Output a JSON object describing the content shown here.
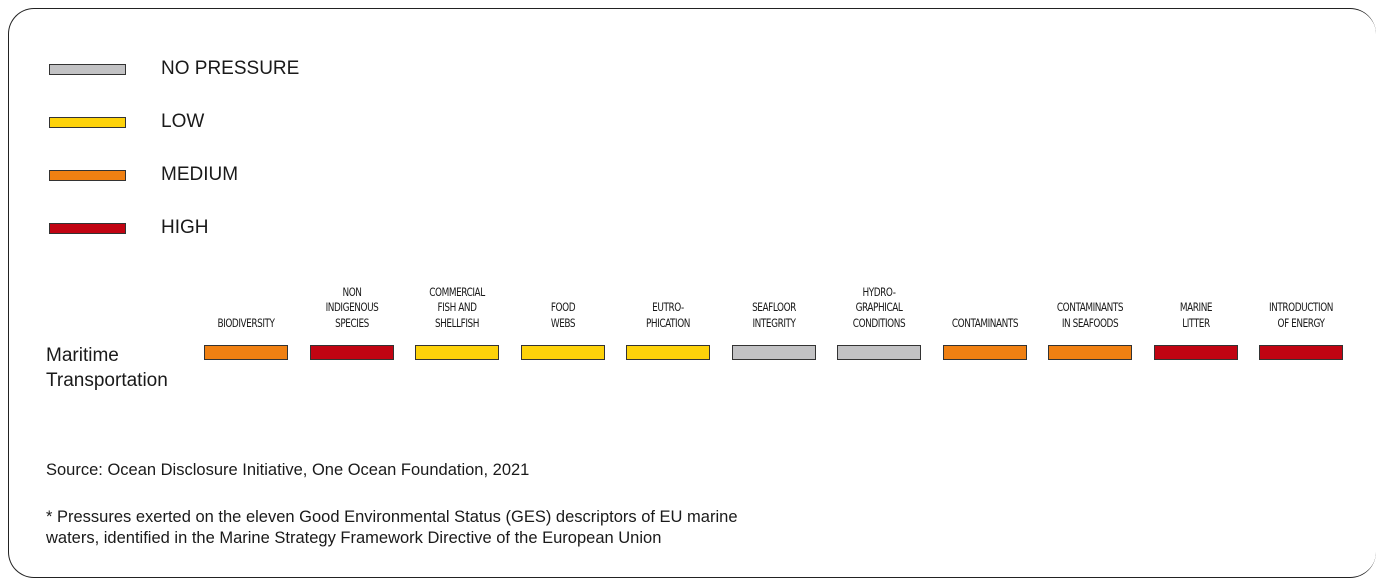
{
  "legend": [
    {
      "level": "none",
      "label": "NO PRESSURE",
      "color": "#c2c2c4"
    },
    {
      "level": "low",
      "label": "LOW",
      "color": "#fdd20a"
    },
    {
      "level": "medium",
      "label": "MEDIUM",
      "color": "#f08012"
    },
    {
      "level": "high",
      "label": "HIGH",
      "color": "#c10412"
    }
  ],
  "chart_data": {
    "type": "heatmap",
    "columns": [
      [
        "BIODIVERSITY"
      ],
      [
        "NON",
        "INDIGENOUS",
        "SPECIES"
      ],
      [
        "COMMERCIAL",
        "FISH AND",
        "SHELLFISH"
      ],
      [
        "FOOD",
        "WEBS"
      ],
      [
        "EUTRO-",
        "PHICATION"
      ],
      [
        "SEAFLOOR",
        "INTEGRITY"
      ],
      [
        "HYDRO-",
        "GRAPHICAL",
        "CONDITIONS"
      ],
      [
        "CONTAMINANTS"
      ],
      [
        "CONTAMINANTS",
        "IN SEAFOODS"
      ],
      [
        "MARINE",
        "LITTER"
      ],
      [
        "INTRODUCTION",
        "OF ENERGY"
      ]
    ],
    "rows": [
      {
        "label": [
          "Maritime",
          "Transportation"
        ],
        "values": [
          "medium",
          "high",
          "low",
          "low",
          "low",
          "none",
          "none",
          "medium",
          "medium",
          "high",
          "high"
        ]
      }
    ]
  },
  "source": "Source: Ocean Disclosure Initiative, One Ocean Foundation, 2021",
  "note": [
    "* Pressures exerted on the eleven Good Environmental Status (GES) descriptors of EU marine",
    "waters, identified in the Marine Strategy Framework Directive of the European Union"
  ]
}
